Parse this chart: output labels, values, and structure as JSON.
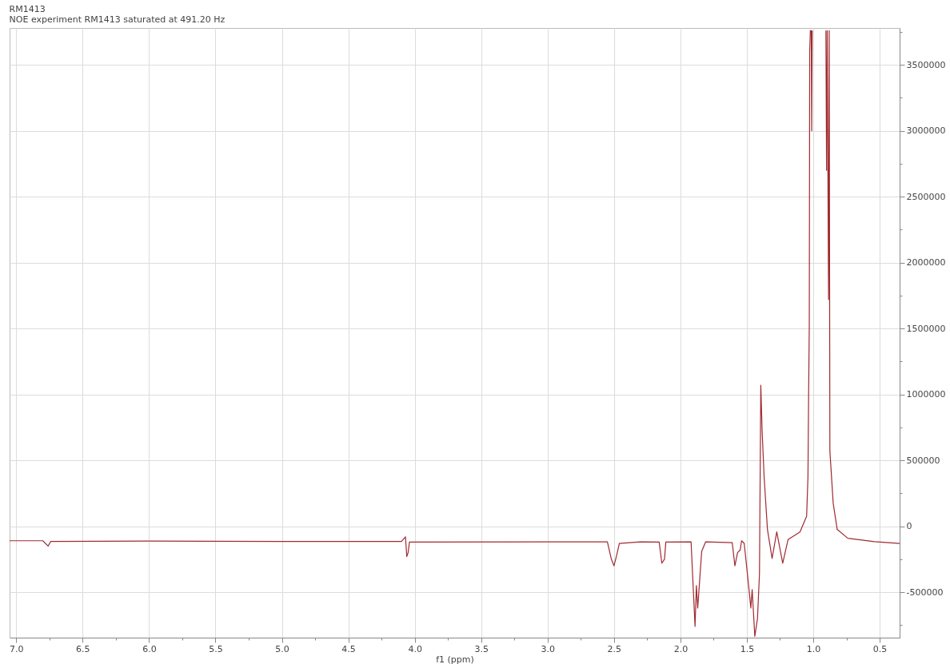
{
  "chart_data": {
    "type": "line",
    "title": "RM1413",
    "subtitle": "NOE experiment RM1413 saturated at 491.20 Hz",
    "xlabel": "f1 (ppm)",
    "x": [
      7.05,
      6.8,
      6.76,
      6.74,
      6.0,
      5.0,
      4.1,
      4.07,
      4.06,
      4.05,
      4.04,
      3.0,
      2.55,
      2.52,
      2.5,
      2.48,
      2.46,
      2.3,
      2.16,
      2.14,
      2.12,
      2.11,
      1.92,
      1.89,
      1.88,
      1.87,
      1.84,
      1.81,
      1.61,
      1.59,
      1.57,
      1.55,
      1.54,
      1.52,
      1.5,
      1.47,
      1.46,
      1.44,
      1.42,
      1.405,
      1.395,
      1.385,
      1.37,
      1.345,
      1.31,
      1.275,
      1.23,
      1.19,
      1.1,
      1.05,
      1.04,
      1.035,
      1.03,
      1.027,
      1.022,
      1.015,
      1.012,
      1.008,
      0.95,
      0.905,
      0.9,
      0.895,
      0.885,
      0.88,
      0.875,
      0.85,
      0.82,
      0.74,
      0.54,
      0.35
    ],
    "series": [
      {
        "color": "#a02a30",
        "values": [
          -110000,
          -110000,
          -150000,
          -115000,
          -112000,
          -115000,
          -115000,
          -80000,
          -230000,
          -200000,
          -120000,
          -118000,
          -118000,
          -250000,
          -300000,
          -220000,
          -130000,
          -118000,
          -120000,
          -280000,
          -250000,
          -120000,
          -118000,
          -760000,
          -450000,
          -620000,
          -190000,
          -118000,
          -125000,
          -300000,
          -200000,
          -180000,
          -110000,
          -130000,
          -320000,
          -620000,
          -480000,
          -835000,
          -700000,
          -360000,
          1070000,
          720000,
          375000,
          -24000,
          -244000,
          -42000,
          -280000,
          -101000,
          -43000,
          77000,
          373000,
          1000000,
          1530000,
          3600000,
          3760000,
          3760000,
          3000000,
          3760000,
          null,
          3760000,
          2700000,
          3760000,
          1720000,
          3760000,
          571000,
          174000,
          -24000,
          -91000,
          -117000,
          -130000
        ]
      }
    ],
    "xlim": [
      7.05,
      0.35
    ],
    "xticks": [
      {
        "value": 7,
        "label": "7.0"
      },
      {
        "value": 6.75,
        "label": null
      },
      6.5,
      {
        "value": 6.25,
        "label": null
      },
      {
        "value": 6,
        "label": "6.0"
      },
      {
        "value": 5.75,
        "label": null
      },
      5.5,
      {
        "value": 5.25,
        "label": null
      },
      {
        "value": 5,
        "label": "5.0"
      },
      {
        "value": 4.75,
        "label": null
      },
      4.5,
      {
        "value": 4.25,
        "label": null
      },
      {
        "value": 4,
        "label": "4.0"
      },
      {
        "value": 3.75,
        "label": null
      },
      3.5,
      {
        "value": 3.25,
        "label": null
      },
      {
        "value": 3,
        "label": "3.0"
      },
      {
        "value": 2.75,
        "label": null
      },
      2.5,
      {
        "value": 2.25,
        "label": null
      },
      {
        "value": 2,
        "label": "2.0"
      },
      {
        "value": 1.75,
        "label": null
      },
      1.5,
      {
        "value": 1.25,
        "label": null
      },
      {
        "value": 1,
        "label": "1.0"
      },
      {
        "value": 0.75,
        "label": null
      },
      0.5
    ],
    "ylim": [
      -845000,
      3780000
    ],
    "yticks": [
      {
        "value": -750000,
        "label": null
      },
      -500000,
      {
        "value": -250000,
        "label": null
      },
      0,
      {
        "value": 250000,
        "label": null
      },
      500000,
      {
        "value": 750000,
        "label": null
      },
      1000000,
      {
        "value": 1250000,
        "label": null
      },
      1500000,
      {
        "value": 1750000,
        "label": null
      },
      2000000,
      {
        "value": 2250000,
        "label": null
      },
      2500000,
      {
        "value": 2750000,
        "label": null
      },
      3000000,
      {
        "value": 3250000,
        "label": null
      },
      3500000,
      {
        "value": 3750000,
        "label": null
      }
    ],
    "grid": true,
    "line_style": "solid",
    "marker": "none"
  }
}
